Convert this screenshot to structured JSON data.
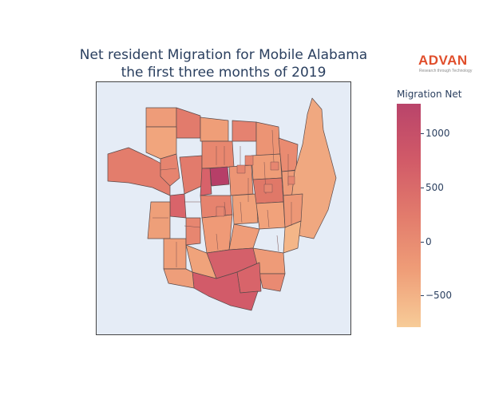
{
  "title_line1": "Net resident Migration for Mobile Alabama",
  "title_line2": "the first three months of 2019",
  "logo": {
    "brand": "ADVAN",
    "tagline": "Research through Technology",
    "color": "#e04e2b"
  },
  "colorbar": {
    "title": "Migration Net",
    "ticks": [
      {
        "label": "1000",
        "value": 1000
      },
      {
        "label": "500",
        "value": 500
      },
      {
        "label": "0",
        "value": 0
      },
      {
        "label": "−500",
        "value": -500
      }
    ],
    "range": [
      -780,
      1250
    ],
    "colors": [
      "#f7cc98",
      "#ef9e78",
      "#e27b6c",
      "#d15a68",
      "#b9446a"
    ]
  },
  "map": {
    "background": "#e5ecf6",
    "border_color": "#555555"
  }
}
